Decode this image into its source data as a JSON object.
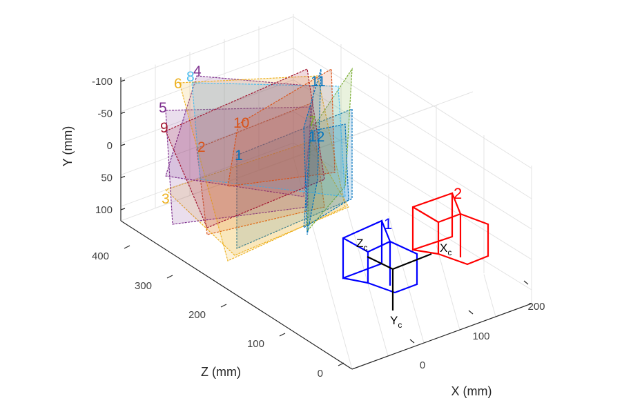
{
  "chart_data": {
    "type": "scatter",
    "title": "",
    "xlabel": "X (mm)",
    "ylabel": "Y (mm)",
    "zlabel": "Z (mm)",
    "x_ticks": [
      "0",
      "100",
      "200"
    ],
    "y_ticks": [
      "-100",
      "-50",
      "0",
      "50",
      "100"
    ],
    "z_ticks": [
      "0",
      "100",
      "200",
      "300",
      "400"
    ],
    "xlim": [
      -60,
      220
    ],
    "ylim": [
      -130,
      120
    ],
    "zlim": [
      0,
      480
    ],
    "grid": true,
    "cameras": [
      {
        "label": "1",
        "color": "#0000ff",
        "position_mm": [
          0,
          0,
          0
        ]
      },
      {
        "label": "2",
        "color": "#ff0000",
        "position_mm": [
          120,
          0,
          20
        ]
      }
    ],
    "camera_axis_labels": {
      "x": "X",
      "y": "Y",
      "z": "Z",
      "subscript": "c"
    },
    "pattern_planes": [
      {
        "label": "1",
        "color": "#0072bd"
      },
      {
        "label": "2",
        "color": "#d95319"
      },
      {
        "label": "3",
        "color": "#edb120"
      },
      {
        "label": "4",
        "color": "#7e2f8e"
      },
      {
        "label": "5",
        "color": "#7e2f8e"
      },
      {
        "label": "6",
        "color": "#edb120"
      },
      {
        "label": "7",
        "color": "#77ac30"
      },
      {
        "label": "8",
        "color": "#4dbeee"
      },
      {
        "label": "9",
        "color": "#a2142f"
      },
      {
        "label": "10",
        "color": "#d95319"
      },
      {
        "label": "11",
        "color": "#0072bd"
      },
      {
        "label": "12",
        "color": "#0072bd"
      }
    ]
  }
}
